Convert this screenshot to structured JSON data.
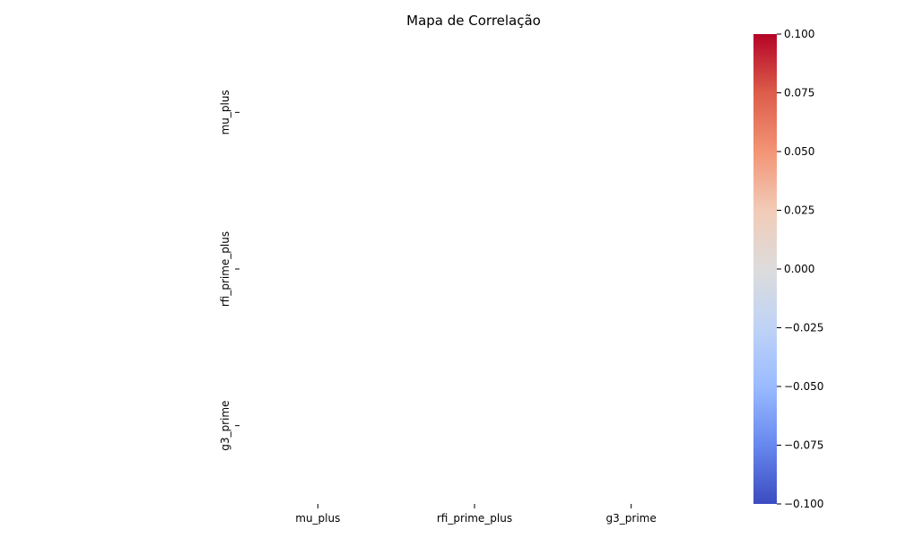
{
  "chart_data": {
    "type": "heatmap",
    "title": "Mapa de Correlação",
    "x_labels": [
      "mu_plus",
      "rfi_prime_plus",
      "g3_prime"
    ],
    "y_labels": [
      "mu_plus",
      "rfi_prime_plus",
      "g3_prime"
    ],
    "values": [
      [
        null,
        null,
        null
      ],
      [
        null,
        null,
        null
      ],
      [
        null,
        null,
        null
      ]
    ],
    "colorbar": {
      "range": [
        -0.1,
        0.1
      ],
      "ticks": [
        0.1,
        0.075,
        0.05,
        0.025,
        0.0,
        -0.025,
        -0.05,
        -0.075,
        -0.1
      ],
      "tick_labels": [
        "0.100",
        "0.075",
        "0.050",
        "0.025",
        "0.000",
        "−0.025",
        "−0.050",
        "−0.075",
        "−0.100"
      ],
      "colormap": "coolwarm",
      "color_high": "#b40426",
      "color_mid": "#dddddd",
      "color_low": "#3b4cc0"
    }
  }
}
